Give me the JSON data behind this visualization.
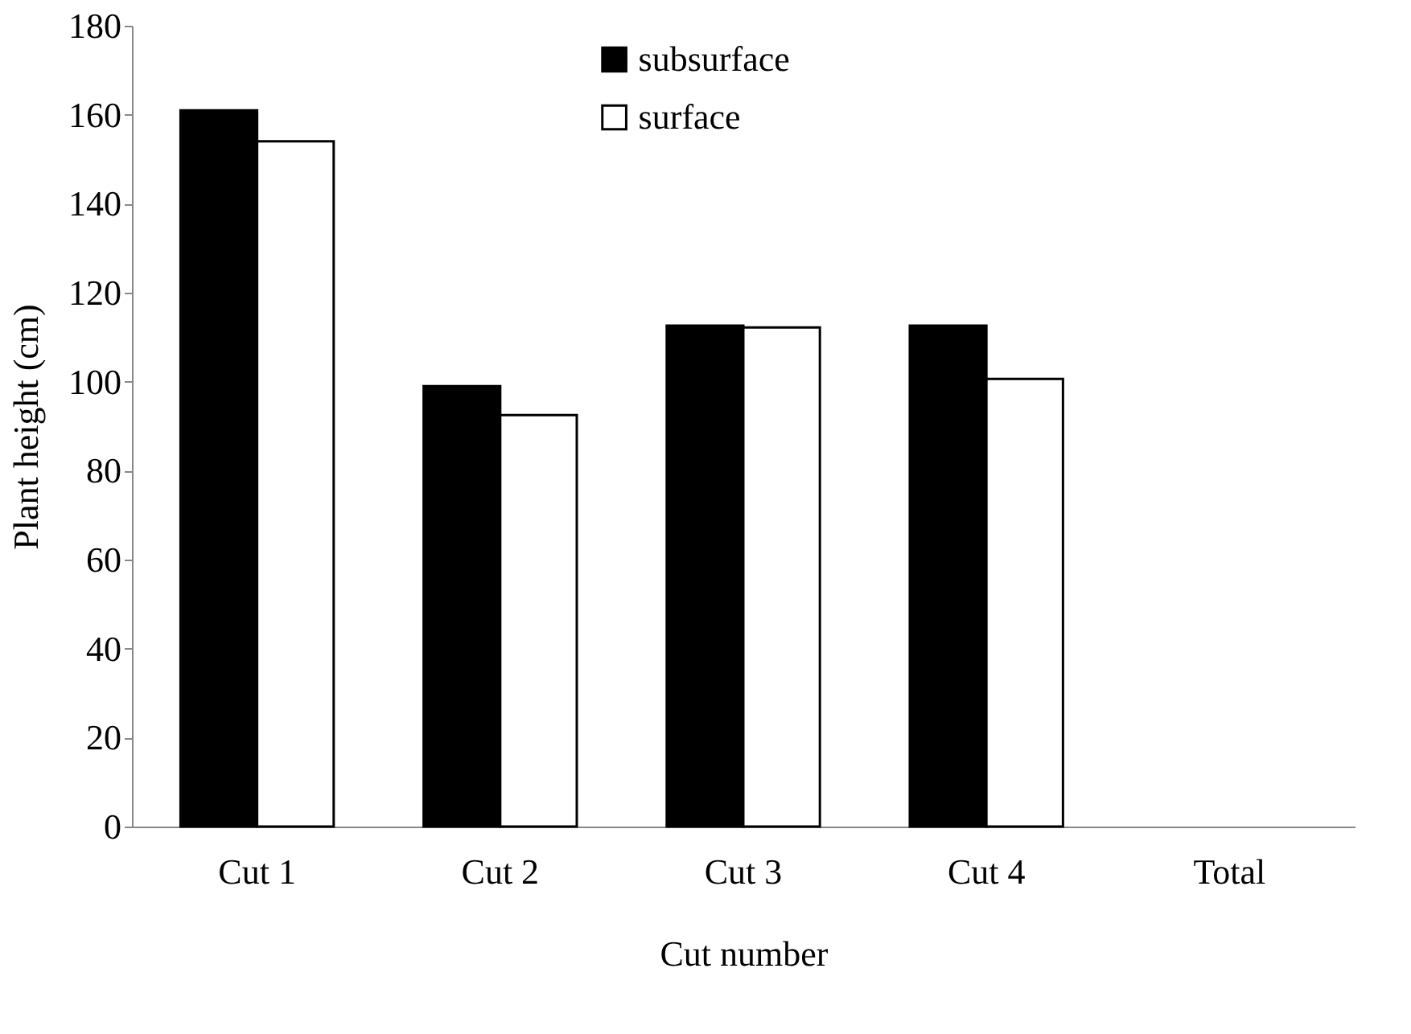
{
  "chart_data": {
    "type": "bar",
    "xlabel": "Cut number",
    "ylabel": "Plant height (cm)",
    "categories": [
      "Cut 1",
      "Cut 2",
      "Cut 3",
      "Cut 4",
      "Total"
    ],
    "series": [
      {
        "name": "subsurface",
        "color": "#000000",
        "values": [
          161,
          99,
          112.6,
          112.6,
          null
        ]
      },
      {
        "name": "surface",
        "color": "#ffffff",
        "values": [
          154,
          92.5,
          112.2,
          100.6,
          null
        ]
      }
    ],
    "ylim": [
      0,
      180
    ],
    "yticks": [
      0,
      20,
      40,
      60,
      80,
      100,
      120,
      140,
      160,
      180
    ],
    "grid": false,
    "legend": "top"
  }
}
